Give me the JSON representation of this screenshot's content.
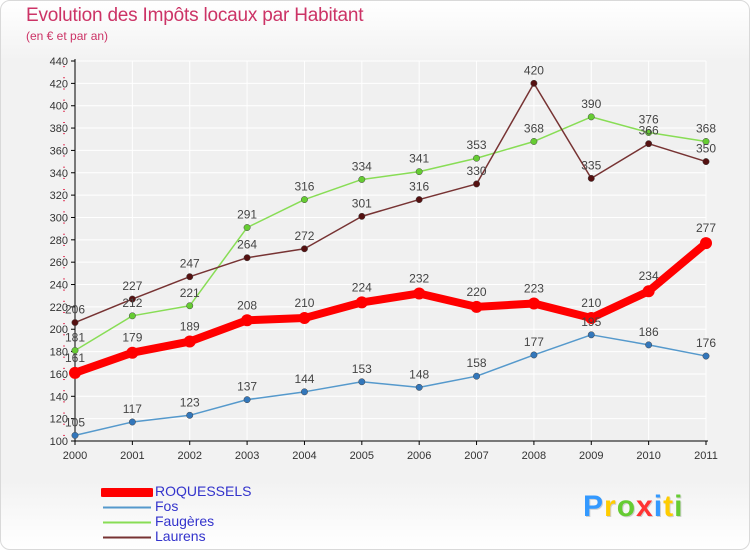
{
  "header": {
    "title": "Evolution des Impôts locaux par Habitant",
    "subtitle": "(en € et par an)"
  },
  "logo": {
    "text": "Proxiti"
  },
  "colors": {
    "title": "#cc3366",
    "legend_text": "#3333cc",
    "axis": "#000000",
    "grid": "#ffffff"
  },
  "chart_data": {
    "type": "line",
    "title": "Evolution des Impôts locaux par Habitant",
    "subtitle": "(en € et par an)",
    "x": [
      "2000",
      "2001",
      "2002",
      "2003",
      "2004",
      "2005",
      "2006",
      "2007",
      "2008",
      "2009",
      "2010",
      "2011"
    ],
    "ylim": [
      100,
      440
    ],
    "yticks": [
      100,
      120,
      140,
      160,
      180,
      200,
      220,
      240,
      260,
      280,
      300,
      320,
      340,
      360,
      380,
      400,
      420,
      440
    ],
    "grid": true,
    "legend_placement": "bottom-left",
    "series": [
      {
        "name": "ROQUESSELS",
        "color": "#ff0000",
        "values": [
          161,
          179,
          189,
          208,
          210,
          224,
          232,
          220,
          223,
          210,
          234,
          277
        ]
      },
      {
        "name": "Fos",
        "color": "#5599cc",
        "values": [
          105,
          117,
          123,
          137,
          144,
          153,
          148,
          158,
          177,
          195,
          186,
          176
        ]
      },
      {
        "name": "Faugères",
        "color": "#88dd55",
        "values": [
          181,
          212,
          221,
          291,
          316,
          334,
          341,
          353,
          368,
          390,
          376,
          368
        ]
      },
      {
        "name": "Laurens",
        "color": "#773333",
        "values": [
          206,
          227,
          247,
          264,
          272,
          301,
          316,
          330,
          420,
          335,
          366,
          350
        ]
      }
    ]
  }
}
